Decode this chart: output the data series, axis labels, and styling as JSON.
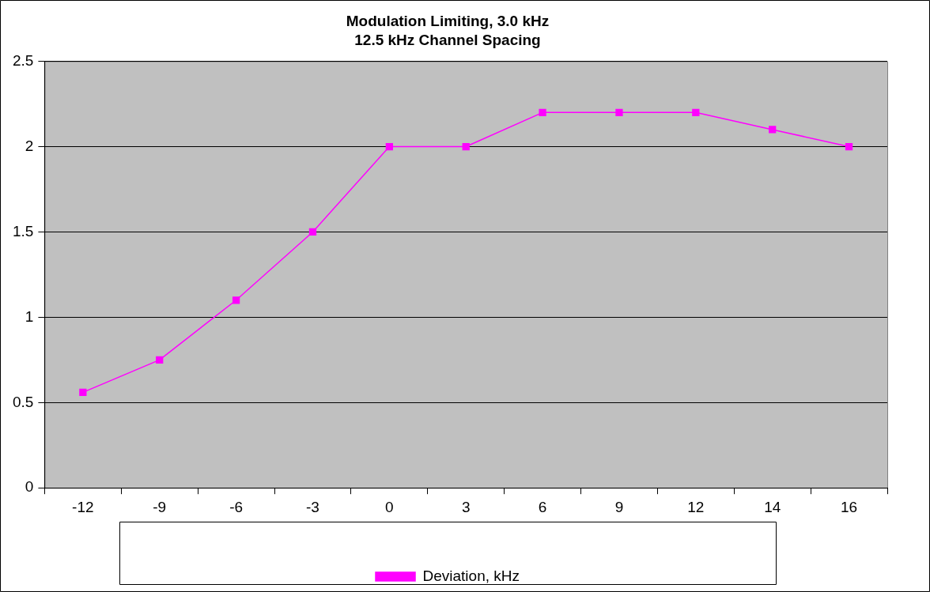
{
  "chart_data": {
    "type": "line",
    "title": "Modulation Limiting, 3.0 kHz",
    "subtitle": "12.5 kHz Channel Spacing",
    "categories": [
      "-12",
      "-9",
      "-6",
      "-3",
      "0",
      "3",
      "6",
      "9",
      "12",
      "14",
      "16"
    ],
    "series": [
      {
        "name": "Deviation, kHz",
        "color": "#ff00ff",
        "values": [
          0.56,
          0.75,
          1.1,
          1.5,
          2.0,
          2.0,
          2.2,
          2.2,
          2.2,
          2.1,
          2.0
        ]
      }
    ],
    "ylim": [
      0,
      2.5
    ],
    "yticks": [
      0,
      0.5,
      1,
      1.5,
      2,
      2.5
    ],
    "grid": "y",
    "legend": "bottom",
    "marker": "square",
    "line_style": "solid"
  }
}
